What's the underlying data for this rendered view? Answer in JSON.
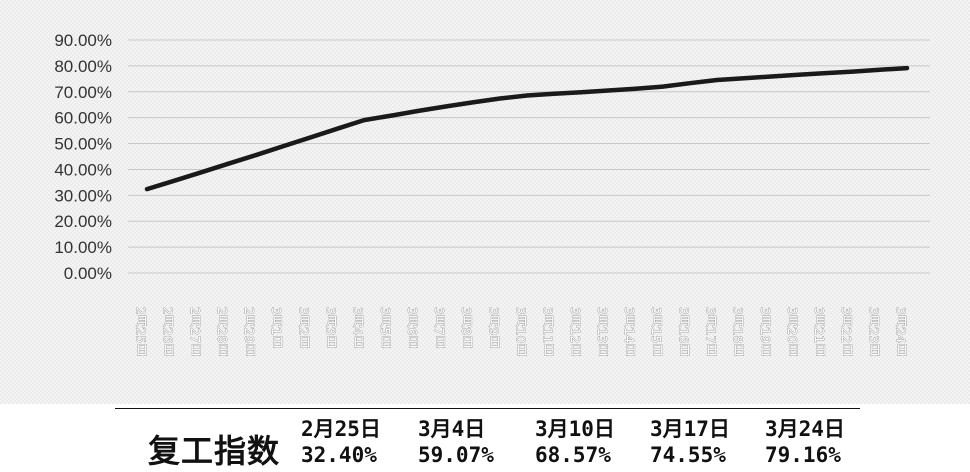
{
  "chart_data": {
    "type": "line",
    "categories": [
      "2月25日",
      "2月26日",
      "2月27日",
      "2月28日",
      "2月29日",
      "3月1日",
      "3月2日",
      "3月3日",
      "3月4日",
      "3月5日",
      "3月6日",
      "3月7日",
      "3月8日",
      "3月9日",
      "3月10日",
      "3月11日",
      "3月12日",
      "3月13日",
      "3月14日",
      "3月15日",
      "3月16日",
      "3月17日",
      "3月18日",
      "3月19日",
      "3月20日",
      "3月21日",
      "3月22日",
      "3月23日",
      "3月24日"
    ],
    "series": [
      {
        "values": [
          0.324,
          0.356,
          0.389,
          0.422,
          0.455,
          0.489,
          0.523,
          0.557,
          0.5907,
          0.608,
          0.626,
          0.643,
          0.659,
          0.674,
          0.6857,
          0.692,
          0.698,
          0.705,
          0.712,
          0.72,
          0.733,
          0.7455,
          0.752,
          0.759,
          0.766,
          0.772,
          0.778,
          0.785,
          0.7916
        ]
      }
    ],
    "yticks": [
      "90.00%",
      "80.00%",
      "70.00%",
      "60.00%",
      "50.00%",
      "40.00%",
      "30.00%",
      "20.00%",
      "10.00%",
      "0.00%"
    ],
    "ylim": [
      0,
      0.9
    ],
    "grid": true,
    "line_color": "#1a1a1a",
    "grid_color": "#c8c8c8"
  },
  "summary": {
    "title": "复工指数",
    "items": [
      {
        "date": "2月25日",
        "value": "32.40%"
      },
      {
        "date": "3月4日",
        "value": "59.07%"
      },
      {
        "date": "3月10日",
        "value": "68.57%"
      },
      {
        "date": "3月17日",
        "value": "74.55%"
      },
      {
        "date": "3月24日",
        "value": "79.16%"
      }
    ]
  }
}
